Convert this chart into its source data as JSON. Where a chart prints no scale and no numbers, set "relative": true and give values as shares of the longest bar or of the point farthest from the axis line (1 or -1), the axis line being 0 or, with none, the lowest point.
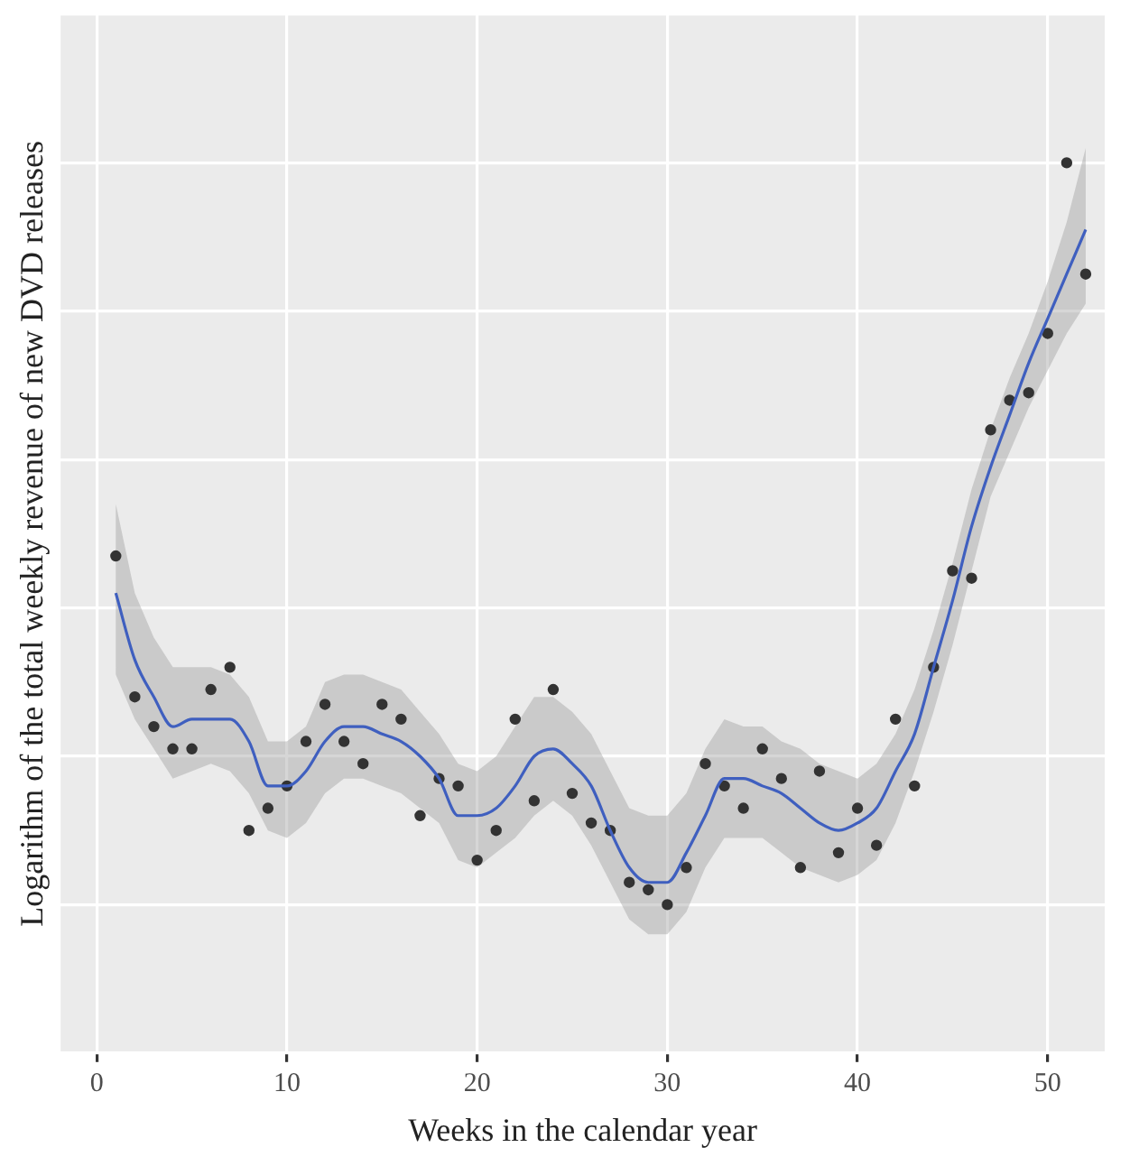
{
  "chart_data": {
    "type": "scatter",
    "xlabel": "Weeks in the calendar year",
    "ylabel": "Logarithm of the total weekly revenue of new DVD releases",
    "relative": true,
    "grid": true,
    "legend": false,
    "marker": "circle",
    "xlim": [
      -1.9,
      53
    ],
    "xticks": [
      0,
      10,
      20,
      30,
      40,
      50
    ],
    "x": [
      1,
      2,
      3,
      4,
      5,
      6,
      7,
      8,
      9,
      10,
      11,
      12,
      13,
      14,
      15,
      16,
      17,
      18,
      19,
      20,
      21,
      22,
      23,
      24,
      25,
      26,
      27,
      28,
      29,
      30,
      31,
      32,
      33,
      34,
      35,
      36,
      37,
      38,
      39,
      40,
      41,
      42,
      43,
      44,
      45,
      46,
      47,
      48,
      49,
      50,
      51,
      52
    ],
    "series": [
      {
        "color": "#333333",
        "values": [
          0.47,
          0.28,
          0.24,
          0.21,
          0.21,
          0.29,
          0.32,
          0.1,
          0.13,
          0.16,
          0.22,
          0.27,
          0.22,
          0.19,
          0.27,
          0.25,
          0.12,
          0.17,
          0.16,
          0.06,
          0.1,
          0.25,
          0.14,
          0.29,
          0.15,
          0.11,
          0.1,
          0.03,
          0.02,
          0,
          0.05,
          0.19,
          0.16,
          0.13,
          0.21,
          0.17,
          0.05,
          0.18,
          0.07,
          0.13,
          0.08,
          0.25,
          0.16,
          0.32,
          0.45,
          0.44,
          0.64,
          0.68,
          0.69,
          0.77,
          1,
          0.85
        ]
      },
      {
        "type": "line",
        "color": "#3f5fbf",
        "line_style": "solid",
        "marker": "none",
        "values": [
          0.42,
          0.33,
          0.28,
          0.24,
          0.25,
          0.25,
          0.25,
          0.22,
          0.16,
          0.16,
          0.18,
          0.22,
          0.24,
          0.24,
          0.23,
          0.22,
          0.2,
          0.17,
          0.12,
          0.12,
          0.13,
          0.16,
          0.2,
          0.21,
          0.19,
          0.16,
          0.1,
          0.05,
          0.03,
          0.03,
          0.07,
          0.12,
          0.17,
          0.17,
          0.16,
          0.15,
          0.13,
          0.11,
          0.1,
          0.11,
          0.13,
          0.18,
          0.23,
          0.32,
          0.41,
          0.51,
          0.59,
          0.66,
          0.73,
          0.79,
          0.85,
          0.91
        ],
        "upper": [
          0.54,
          0.42,
          0.36,
          0.32,
          0.32,
          0.32,
          0.31,
          0.28,
          0.22,
          0.22,
          0.24,
          0.3,
          0.31,
          0.31,
          0.3,
          0.29,
          0.26,
          0.23,
          0.19,
          0.18,
          0.2,
          0.24,
          0.28,
          0.28,
          0.26,
          0.23,
          0.18,
          0.13,
          0.12,
          0.12,
          0.15,
          0.21,
          0.25,
          0.24,
          0.24,
          0.22,
          0.21,
          0.19,
          0.18,
          0.17,
          0.19,
          0.23,
          0.29,
          0.37,
          0.46,
          0.56,
          0.64,
          0.71,
          0.77,
          0.84,
          0.92,
          1.02
        ],
        "lower": [
          0.31,
          0.25,
          0.21,
          0.17,
          0.18,
          0.19,
          0.18,
          0.15,
          0.1,
          0.09,
          0.11,
          0.15,
          0.17,
          0.17,
          0.16,
          0.15,
          0.13,
          0.11,
          0.06,
          0.05,
          0.07,
          0.09,
          0.12,
          0.14,
          0.12,
          0.08,
          0.03,
          -0.02,
          -0.04,
          -0.04,
          -0.01,
          0.05,
          0.09,
          0.09,
          0.09,
          0.07,
          0.05,
          0.04,
          0.03,
          0.04,
          0.06,
          0.11,
          0.18,
          0.26,
          0.35,
          0.45,
          0.55,
          0.61,
          0.67,
          0.72,
          0.77,
          0.81
        ]
      }
    ]
  }
}
